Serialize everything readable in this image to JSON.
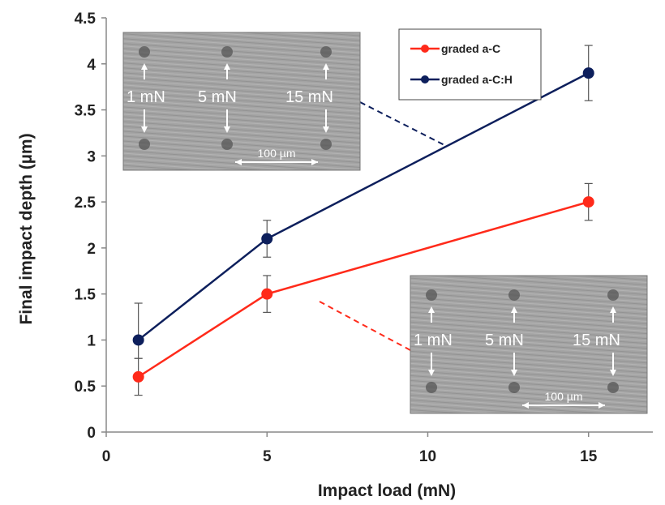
{
  "chart_data": {
    "type": "line",
    "xlabel": "Impact load (mN)",
    "ylabel": "Final impact depth (µm)",
    "xlim": [
      0,
      17
    ],
    "ylim": [
      0,
      4.5
    ],
    "x_ticks": [
      "0",
      "5",
      "10",
      "15"
    ],
    "y_ticks": [
      "0",
      "0.5",
      "1",
      "1.5",
      "2",
      "2.5",
      "3",
      "3.5",
      "4",
      "4.5"
    ],
    "legend_position": "top-center",
    "series": [
      {
        "name": "graded a-C",
        "color": "#ff2a1a",
        "x": [
          1,
          5,
          15
        ],
        "y": [
          0.6,
          1.5,
          2.5
        ],
        "error_low": [
          0.4,
          1.3,
          2.3
        ],
        "error_high": [
          0.8,
          1.7,
          2.7
        ]
      },
      {
        "name": "graded a-C:H",
        "color": "#0d1f5c",
        "x": [
          1,
          5,
          15
        ],
        "y": [
          1.0,
          2.1,
          3.9
        ],
        "error_low": [
          0.8,
          1.9,
          3.6
        ],
        "error_high": [
          1.4,
          2.3,
          4.2
        ]
      }
    ]
  },
  "insets": [
    {
      "series": "graded a-C:H",
      "labels": [
        "1 mN",
        "5 mN",
        "15 mN"
      ],
      "scale_bar": "100 µm"
    },
    {
      "series": "graded a-C",
      "labels": [
        "1 mN",
        "5 mN",
        "15 mN"
      ],
      "scale_bar": "100 µm"
    }
  ]
}
